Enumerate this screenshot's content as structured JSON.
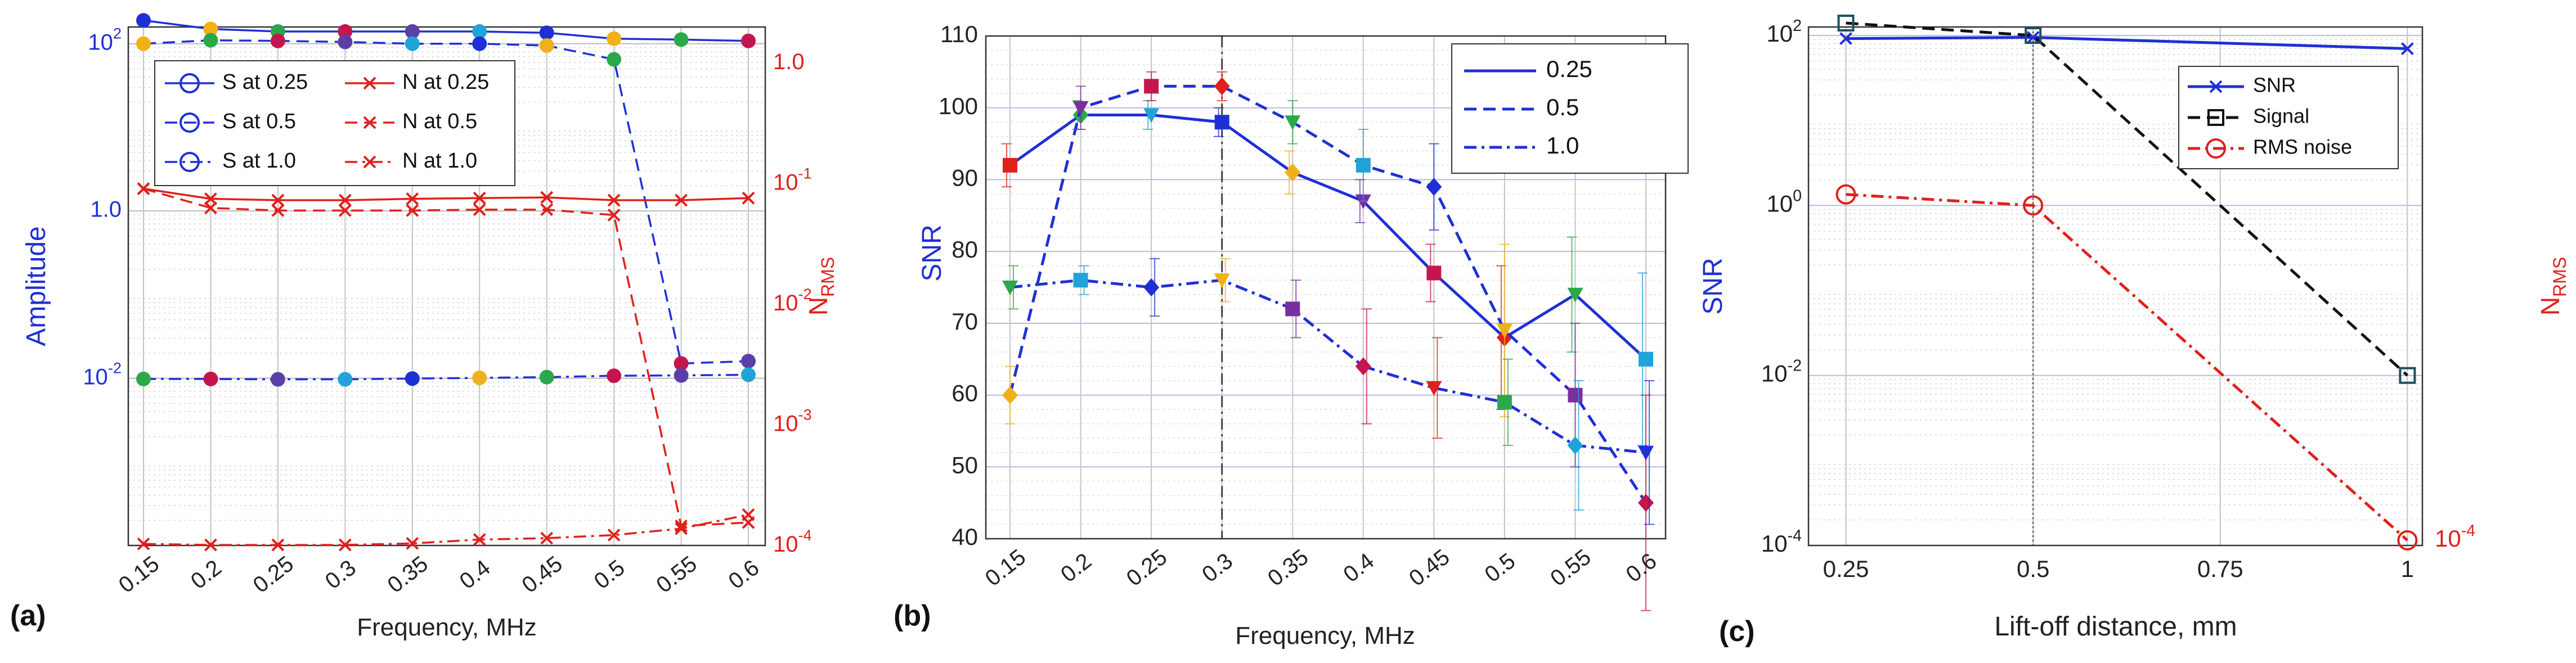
{
  "chart_data": [
    {
      "panel_label": "(a)",
      "type": "line",
      "xscale": "category",
      "categories": [
        "0.15",
        "0.2",
        "0.25",
        "0.3",
        "0.35",
        "0.4",
        "0.45",
        "0.5",
        "0.55",
        "0.6"
      ],
      "xlabel": "Frequency, MHz",
      "ylabel_left": "Amplitude",
      "ylabel_right": {
        "main": "N",
        "sub": "RMS"
      },
      "left_axis": {
        "scale": "log",
        "ylim_exp": [
          -4,
          2.2
        ],
        "ticks": [
          {
            "base": "10",
            "exp": "2",
            "value_exp": 2
          },
          {
            "base": "10",
            "exp": "0",
            "value_exp": 0,
            "text": "1.0"
          },
          {
            "base": "10",
            "exp": "-2",
            "value_exp": -2
          }
        ]
      },
      "right_axis": {
        "scale": "log",
        "ylim_exp": [
          -4,
          0.3
        ],
        "ticks": [
          {
            "base": "10",
            "exp": "0",
            "value_exp": 0,
            "text": "1.0"
          },
          {
            "base": "10",
            "exp": "-1",
            "value_exp": -1
          },
          {
            "base": "10",
            "exp": "-2",
            "value_exp": -2
          },
          {
            "base": "10",
            "exp": "-3",
            "value_exp": -3
          },
          {
            "base": "10",
            "exp": "-4",
            "value_exp": -4
          }
        ]
      },
      "legend_position": "top-left",
      "legend": [
        "S at 0.25",
        "N at 0.25",
        "S at 0.5",
        "N at 0.5",
        "S at 1.0",
        "N at 1.0"
      ],
      "series": [
        {
          "name": "S at 0.25",
          "axis": "left",
          "color": "#1f2fd6",
          "dash": "solid",
          "marker": "circle",
          "values": [
            190,
            150,
            140,
            140,
            140,
            140,
            135,
            115,
            112,
            108
          ]
        },
        {
          "name": "S at 0.5",
          "axis": "left",
          "color": "#1f2fd6",
          "dash": "dashed",
          "marker": "circle",
          "values": [
            100,
            110,
            108,
            105,
            100,
            100,
            95,
            65,
            0.015,
            0.016
          ]
        },
        {
          "name": "S at 1.0",
          "axis": "left",
          "color": "#1f2fd6",
          "dash": "dashdot",
          "marker": "circle",
          "values": [
            0.0098,
            0.0098,
            0.0097,
            0.0097,
            0.0099,
            0.0101,
            0.0103,
            0.0107,
            0.0108,
            0.011
          ]
        },
        {
          "name": "N at 0.25",
          "axis": "right",
          "color": "#e0201b",
          "dash": "solid",
          "marker": "x",
          "values": [
            0.091,
            0.075,
            0.073,
            0.073,
            0.075,
            0.076,
            0.077,
            0.073,
            0.073,
            0.076
          ]
        },
        {
          "name": "N at 0.5",
          "axis": "right",
          "color": "#e0201b",
          "dash": "dashed",
          "marker": "x",
          "values": [
            0.091,
            0.063,
            0.06,
            0.06,
            0.06,
            0.061,
            0.061,
            0.055,
            0.000145,
            0.000155
          ]
        },
        {
          "name": "N at 1.0",
          "axis": "right",
          "color": "#e0201b",
          "dash": "dashdot",
          "marker": "x",
          "values": [
            0.000103,
            0.000101,
            0.000101,
            0.000101,
            0.000104,
            0.000112,
            0.000115,
            0.000122,
            0.000138,
            0.00018
          ]
        }
      ]
    },
    {
      "panel_label": "(b)",
      "type": "line",
      "xscale": "category",
      "categories": [
        "0.15",
        "0.2",
        "0.25",
        "0.3",
        "0.35",
        "0.4",
        "0.45",
        "0.5",
        "0.55",
        "0.6"
      ],
      "xlabel": "Frequency, MHz",
      "ylabel": "SNR",
      "ylim": [
        40,
        110
      ],
      "yticks": [
        40,
        50,
        60,
        70,
        80,
        90,
        100,
        110
      ],
      "vline_at": "0.3",
      "legend_position": "top-right",
      "legend": [
        "0.25",
        "0.5",
        "1.0"
      ],
      "series": [
        {
          "name": "0.25",
          "color": "#1f2fd6",
          "dash": "solid",
          "values": [
            92,
            99,
            99,
            98,
            91,
            87,
            77,
            68,
            74,
            65
          ],
          "errors": [
            3,
            2,
            2,
            2,
            3,
            3,
            4,
            10,
            8,
            12
          ]
        },
        {
          "name": "0.5",
          "color": "#1f2fd6",
          "dash": "dashed",
          "values": [
            60,
            100,
            103,
            103,
            98,
            92,
            89,
            69,
            60,
            45
          ],
          "errors": [
            4,
            3,
            2,
            2,
            3,
            5,
            6,
            12,
            10,
            15
          ]
        },
        {
          "name": "1.0",
          "color": "#1f2fd6",
          "dash": "dashdot",
          "values": [
            75,
            76,
            75,
            76,
            72,
            64,
            61,
            59,
            53,
            52
          ],
          "errors": [
            3,
            2,
            4,
            3,
            4,
            8,
            7,
            6,
            9,
            10
          ]
        }
      ]
    },
    {
      "panel_label": "(c)",
      "type": "line",
      "xscale": "linear",
      "xlabel": "Lift-off distance, mm",
      "xlim": [
        0.2,
        1.02
      ],
      "xticks": [
        "0.25",
        "0.5",
        "0.75",
        "1"
      ],
      "ylabel_left": "SNR",
      "ylabel_right": {
        "main": "N",
        "sub": "RMS"
      },
      "left_axis": {
        "scale": "log",
        "ylim_exp": [
          -4,
          2.1
        ],
        "ticks": [
          {
            "base": "10",
            "exp": "2",
            "value_exp": 2
          },
          {
            "base": "10",
            "exp": "0",
            "value_exp": 0
          },
          {
            "base": "10",
            "exp": "-2",
            "value_exp": -2
          },
          {
            "base": "10",
            "exp": "-4",
            "value_exp": -4
          }
        ]
      },
      "right_tick": {
        "base": "10",
        "exp": "-4"
      },
      "legend_position": "top-right",
      "legend": [
        "SNR",
        "Signal",
        "RMS noise"
      ],
      "series": [
        {
          "name": "SNR",
          "color": "#1f2fd6",
          "dash": "solid",
          "marker": "x",
          "x": [
            0.25,
            0.5,
            1.0
          ],
          "values": [
            92,
            95,
            70
          ]
        },
        {
          "name": "Signal",
          "color": "#111111",
          "dash": "dashed",
          "marker": "square",
          "x": [
            0.25,
            0.5,
            1.0
          ],
          "values": [
            140,
            100,
            0.01
          ]
        },
        {
          "name": "RMS noise",
          "color": "#e0201b",
          "dash": "dashdot",
          "marker": "circle",
          "x": [
            0.25,
            0.5,
            1.0
          ],
          "values": [
            1.35,
            1.0,
            0.000115
          ]
        }
      ]
    }
  ]
}
